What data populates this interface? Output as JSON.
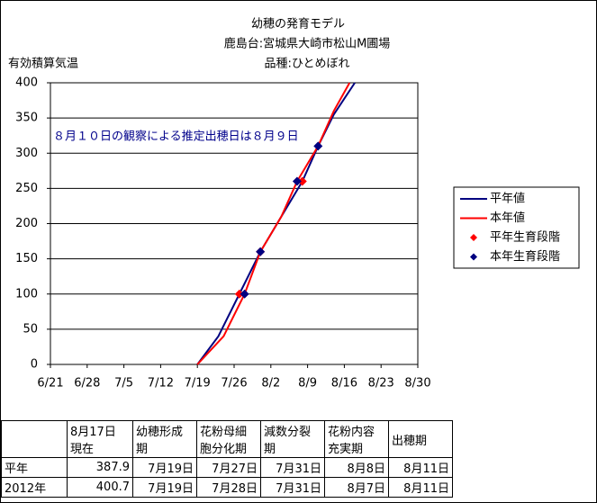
{
  "chart_data": {
    "type": "line",
    "title": [
      "幼穂の発育モデル",
      "鹿島台:宮城県大崎市松山M圃場",
      "品種:ひとめぼれ"
    ],
    "y_label": "有効積算気温",
    "annotation": "８月１０日の観察による推定出穂日は８月９日",
    "xlim": [
      "6/21",
      "8/30"
    ],
    "xticks": [
      "6/21",
      "6/28",
      "7/5",
      "7/12",
      "7/19",
      "7/26",
      "8/2",
      "8/9",
      "8/16",
      "8/23",
      "8/30"
    ],
    "ylim": [
      0,
      400
    ],
    "yticks": [
      0,
      50,
      100,
      150,
      200,
      250,
      300,
      350,
      400
    ],
    "grid": true,
    "series": [
      {
        "name": "平年値",
        "color": "#000080",
        "type": "line",
        "x": [
          "7/19",
          "7/23",
          "7/27",
          "7/31",
          "8/4",
          "8/8",
          "8/11",
          "8/14",
          "8/18"
        ],
        "values": [
          0,
          40,
          100,
          160,
          210,
          260,
          310,
          355,
          400
        ]
      },
      {
        "name": "本年値",
        "color": "#ff0000",
        "type": "line",
        "x": [
          "7/19",
          "7/24",
          "7/28",
          "7/31",
          "8/4",
          "8/7",
          "8/11",
          "8/14",
          "8/17"
        ],
        "values": [
          0,
          40,
          100,
          160,
          210,
          260,
          310,
          360,
          400
        ]
      },
      {
        "name": "平年生育段階",
        "color": "#ff0000",
        "type": "scatter",
        "x": [
          "7/27",
          "7/31",
          "8/8"
        ],
        "values": [
          100,
          160,
          260
        ]
      },
      {
        "name": "本年生育段階",
        "color": "#000080",
        "type": "scatter",
        "x": [
          "7/28",
          "7/31",
          "8/7",
          "8/11"
        ],
        "values": [
          100,
          160,
          260,
          310
        ]
      }
    ]
  },
  "table": {
    "header": [
      "8月17日\n現在",
      "幼穂形成期",
      "花粉母細胞分化期",
      "減数分裂期",
      "花粉内容充実期",
      "出穂期"
    ],
    "rows": [
      [
        "平年",
        "387.9",
        "7月19日",
        "7月27日",
        "7月31日",
        "8月8日",
        "8月11日"
      ],
      [
        "2012年",
        "400.7",
        "7月19日",
        "7月28日",
        "7月31日",
        "8月7日",
        "8月11日"
      ]
    ]
  }
}
